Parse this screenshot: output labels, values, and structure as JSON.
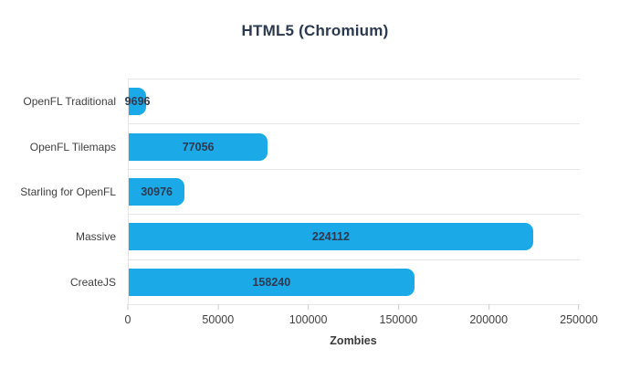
{
  "chart_data": {
    "type": "bar",
    "orientation": "horizontal",
    "title": "HTML5 (Chromium)",
    "categories": [
      "OpenFL Traditional",
      "OpenFL Tilemaps",
      "Starling for OpenFL",
      "Massive",
      "CreateJS"
    ],
    "values": [
      9696,
      77056,
      30976,
      224112,
      158240
    ],
    "value_labels": [
      "9696",
      "77056",
      "30976",
      "224112",
      "158240"
    ],
    "xlabel": "Zombies",
    "xlim": [
      0,
      250000
    ],
    "x_ticks": [
      0,
      50000,
      100000,
      150000,
      200000,
      250000
    ],
    "x_tick_labels": [
      "0",
      "50000",
      "100000",
      "150000",
      "200000",
      "250000"
    ],
    "grid": "horizontal category separators only",
    "legend": "none",
    "colors": {
      "bar": "#1ca9e8",
      "title_text": "#2b3a50",
      "value_text": "#2b3a50",
      "category_text": "#3f3f3f",
      "tick_text": "#3f3f3f",
      "axis_title_text": "#3a3a3a",
      "grid_line": "#e6e6e6",
      "background": "#ffffff"
    }
  }
}
